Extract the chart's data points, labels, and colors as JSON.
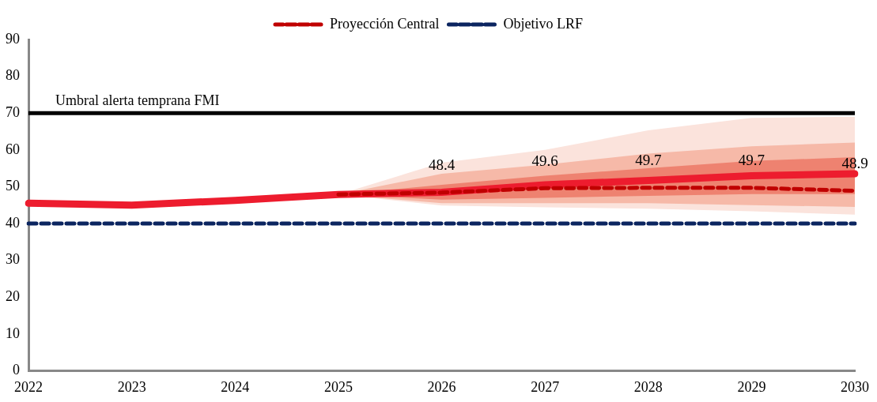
{
  "chart_data": {
    "type": "line",
    "categories": [
      "2022",
      "2023",
      "2024",
      "2025",
      "2026",
      "2027",
      "2028",
      "2029",
      "2030"
    ],
    "ylim": [
      0,
      90
    ],
    "yticks": [
      0,
      10,
      20,
      30,
      40,
      50,
      60,
      70,
      80,
      90
    ],
    "grid": false,
    "legend": "top",
    "marker": "none",
    "series": [
      {
        "type": "area",
        "color": "#fbe3dc",
        "values": [
          null,
          null,
          null,
          null,
          null,
          null,
          null,
          null,
          null
        ],
        "lower": [
          null,
          null,
          null,
          47.9,
          44.9,
          44.4,
          44.0,
          43.3,
          42.4
        ],
        "upper": [
          null,
          null,
          null,
          47.9,
          56.5,
          60.0,
          65.3,
          68.7,
          69.0
        ]
      },
      {
        "type": "area",
        "color": "#f6b9a8",
        "values": [
          null,
          null,
          null,
          null,
          null,
          null,
          null,
          null,
          null
        ],
        "lower": [
          null,
          null,
          null,
          47.9,
          45.5,
          45.5,
          45.5,
          45.0,
          44.5
        ],
        "upper": [
          null,
          null,
          null,
          47.9,
          53.5,
          56.0,
          59.0,
          61.0,
          62.0
        ]
      },
      {
        "type": "area",
        "color": "#ee8270",
        "values": [
          null,
          null,
          null,
          null,
          null,
          null,
          null,
          null,
          null
        ],
        "lower": [
          null,
          null,
          null,
          47.9,
          46.5,
          47.0,
          47.5,
          48.0,
          48.0
        ],
        "upper": [
          null,
          null,
          null,
          47.9,
          50.5,
          53.0,
          55.0,
          57.0,
          58.0
        ]
      },
      {
        "color": "#ed1c2e",
        "line_style": "solid",
        "values": [
          45.5,
          45.0,
          46.3,
          47.9,
          48.5,
          50.5,
          51.7,
          53.0,
          53.5
        ]
      },
      {
        "name": "Proyección Central",
        "color": "#c00000",
        "line_style": "dashed",
        "values": [
          null,
          null,
          null,
          47.9,
          48.4,
          49.6,
          49.7,
          49.7,
          48.9
        ],
        "value_labels": [
          null,
          null,
          null,
          null,
          "48.4",
          "49.6",
          "49.7",
          "49.7",
          "48.9"
        ]
      },
      {
        "name": "Objetivo LRF",
        "color": "#0b2560",
        "line_style": "dashed",
        "values": [
          40,
          40,
          40,
          40,
          40,
          40,
          40,
          40,
          40
        ]
      }
    ],
    "ref_lines": [
      {
        "axis": "y",
        "value": 70,
        "label": "Umbral alerta temprana FMI",
        "color": "#000000",
        "line_style": "solid"
      }
    ]
  }
}
